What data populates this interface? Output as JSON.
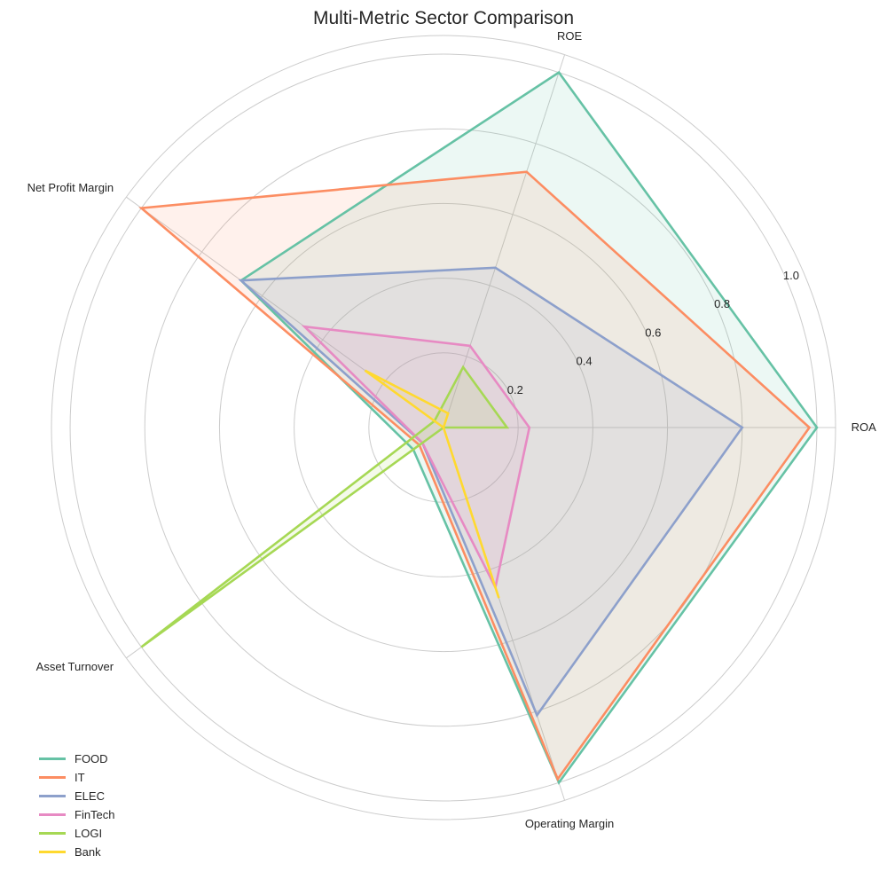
{
  "chart_data": {
    "type": "radar",
    "title": "Multi-Metric Sector Comparison",
    "axes": [
      "ROA",
      "ROE",
      "Net Profit Margin",
      "Asset Turnover",
      "Operating Margin"
    ],
    "rlim": [
      0,
      1.05
    ],
    "rticks": [
      0.2,
      0.4,
      0.6,
      0.8,
      1.0
    ],
    "rtick_labels": [
      "0.2",
      "0.4",
      "0.6",
      "0.8",
      "1.0"
    ],
    "grid": true,
    "legend_position": "bottom-left",
    "series": [
      {
        "name": "FOOD",
        "color": "#66c2a5",
        "values": [
          1.0,
          1.0,
          0.67,
          0.1,
          1.0
        ]
      },
      {
        "name": "IT",
        "color": "#fc8d62",
        "values": [
          0.98,
          0.72,
          1.0,
          0.08,
          0.99
        ]
      },
      {
        "name": "ELEC",
        "color": "#8da0cb",
        "values": [
          0.8,
          0.45,
          0.67,
          0.07,
          0.81
        ]
      },
      {
        "name": "FinTech",
        "color": "#e78ac3",
        "values": [
          0.23,
          0.23,
          0.46,
          0.07,
          0.45
        ]
      },
      {
        "name": "LOGI",
        "color": "#a6d854",
        "values": [
          0.17,
          0.17,
          0.03,
          1.0,
          0.0
        ]
      },
      {
        "name": "Bank",
        "color": "#ffd92f",
        "values": [
          0.0,
          0.04,
          0.26,
          0.0,
          0.48
        ]
      }
    ]
  }
}
